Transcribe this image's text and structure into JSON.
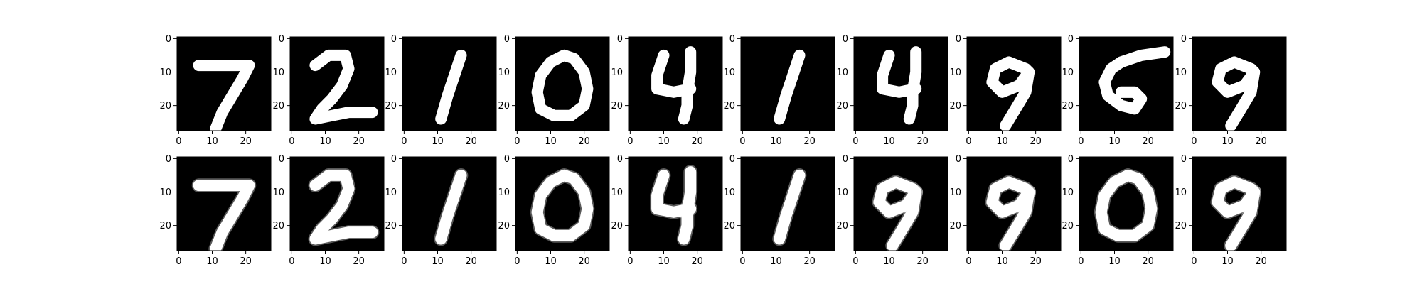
{
  "figure": {
    "background": "#ffffff",
    "ink_color": "#000000",
    "digit_color": "#ffffff",
    "cmap": "gray"
  },
  "chart_data": {
    "type": "image-grid",
    "rows": 2,
    "columns": 10,
    "row_roles": [
      "original",
      "reconstruction"
    ],
    "image_size": [
      28,
      28
    ],
    "xlim": [
      -0.5,
      27.5
    ],
    "ylim": [
      27.5,
      -0.5
    ],
    "x_ticks": [
      0,
      10,
      20
    ],
    "y_ticks": [
      0,
      10,
      20
    ],
    "x_tick_labels": [
      "0",
      "10",
      "20"
    ],
    "y_tick_labels": [
      "0",
      "10",
      "20"
    ],
    "digits": [
      [
        "7",
        "2",
        "1",
        "0",
        "4",
        "1",
        "4",
        "9",
        "5",
        "9"
      ],
      [
        "7",
        "2",
        "1",
        "0",
        "4",
        "1",
        "9",
        "9",
        "0",
        "9"
      ]
    ],
    "strokes": {
      "7": [
        [
          [
            6,
            8
          ],
          [
            21,
            8
          ],
          [
            19,
            12
          ],
          [
            16,
            17
          ],
          [
            13,
            22
          ],
          [
            11,
            27
          ]
        ]
      ],
      "2": [
        [
          [
            7,
            8
          ],
          [
            11,
            5
          ],
          [
            16,
            5
          ],
          [
            17,
            9
          ],
          [
            15,
            14
          ],
          [
            12,
            18
          ],
          [
            9,
            21
          ],
          [
            7,
            24
          ],
          [
            12,
            23
          ],
          [
            17,
            22
          ],
          [
            24,
            22
          ]
        ]
      ],
      "1": [
        [
          [
            17,
            5
          ],
          [
            15,
            11
          ],
          [
            13,
            17
          ],
          [
            11,
            24
          ]
        ]
      ],
      "0": [
        [
          [
            14,
            5
          ],
          [
            10,
            7
          ],
          [
            7,
            11
          ],
          [
            6,
            16
          ],
          [
            7,
            21
          ],
          [
            11,
            23
          ],
          [
            16,
            23
          ],
          [
            20,
            20
          ],
          [
            21,
            15
          ],
          [
            20,
            10
          ],
          [
            17,
            6
          ],
          [
            14,
            5
          ]
        ]
      ],
      "4": [
        [
          [
            10,
            5
          ],
          [
            8,
            11
          ],
          [
            8,
            15
          ],
          [
            13,
            16
          ],
          [
            18,
            15
          ]
        ],
        [
          [
            18,
            4
          ],
          [
            18,
            10
          ],
          [
            17,
            16
          ],
          [
            17,
            20
          ],
          [
            16,
            24
          ]
        ]
      ],
      "9": [
        [
          [
            17,
            9
          ],
          [
            12,
            7
          ],
          [
            8,
            9
          ],
          [
            7,
            13
          ],
          [
            10,
            16
          ],
          [
            15,
            14
          ],
          [
            18,
            10
          ],
          [
            17,
            9
          ]
        ],
        [
          [
            18,
            10
          ],
          [
            17,
            16
          ],
          [
            14,
            21
          ],
          [
            11,
            26
          ]
        ]
      ],
      "5": [
        [
          [
            25,
            4
          ],
          [
            18,
            5
          ],
          [
            12,
            7
          ],
          [
            9,
            9
          ],
          [
            7,
            13
          ],
          [
            8,
            17
          ],
          [
            12,
            20
          ],
          [
            16,
            21
          ],
          [
            18,
            18
          ],
          [
            16,
            16
          ],
          [
            12,
            16
          ]
        ]
      ]
    }
  }
}
